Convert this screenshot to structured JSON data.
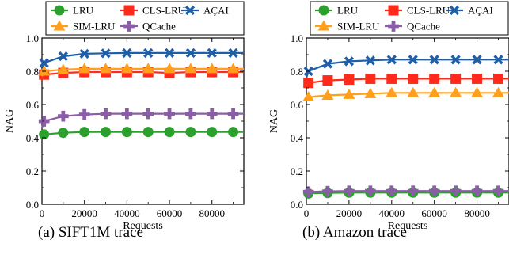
{
  "figure": {
    "captions": [
      "(a) SIFT1M trace",
      "(b) Amazon trace"
    ]
  },
  "chart_data": [
    {
      "type": "line",
      "title": "",
      "xlabel": "Requests",
      "ylabel": "NAG",
      "xlim": [
        0,
        95000
      ],
      "ylim": [
        0.0,
        1.0
      ],
      "xticks": [
        0,
        20000,
        40000,
        60000,
        80000
      ],
      "yticks": [
        0.0,
        0.2,
        0.4,
        0.6,
        0.8,
        1.0
      ],
      "grid": false,
      "legend": "top, outside frame, 3 columns",
      "x": [
        0,
        1000,
        10000,
        20000,
        30000,
        40000,
        50000,
        60000,
        70000,
        80000,
        90000,
        95000
      ],
      "series": [
        {
          "name": "LRU",
          "color": "#2ca02c",
          "marker": "circle",
          "values": [
            0.4,
            0.42,
            0.43,
            0.435,
            0.435,
            0.435,
            0.435,
            0.435,
            0.435,
            0.435,
            0.435,
            0.435
          ]
        },
        {
          "name": "CLS-LRU",
          "color": "#ff2a1a",
          "marker": "square",
          "values": [
            0.76,
            0.78,
            0.79,
            0.795,
            0.795,
            0.795,
            0.795,
            0.79,
            0.795,
            0.795,
            0.795,
            0.795
          ]
        },
        {
          "name": "AÇAI",
          "color": "#1f5fa8",
          "marker": "x",
          "values": [
            0.78,
            0.85,
            0.89,
            0.905,
            0.908,
            0.91,
            0.91,
            0.91,
            0.91,
            0.91,
            0.91,
            0.91
          ]
        },
        {
          "name": "SIM-LRU",
          "color": "#ff9f1a",
          "marker": "triangle",
          "values": [
            0.77,
            0.8,
            0.81,
            0.815,
            0.815,
            0.815,
            0.815,
            0.815,
            0.815,
            0.815,
            0.815,
            0.815
          ]
        },
        {
          "name": "QCache",
          "color": "#8b5ca8",
          "marker": "plus",
          "values": [
            0.46,
            0.5,
            0.53,
            0.54,
            0.545,
            0.545,
            0.545,
            0.545,
            0.545,
            0.545,
            0.545,
            0.545
          ]
        }
      ]
    },
    {
      "type": "line",
      "title": "",
      "xlabel": "Requests",
      "ylabel": "NAG",
      "xlim": [
        0,
        95000
      ],
      "ylim": [
        0.0,
        1.0
      ],
      "xticks": [
        0,
        20000,
        40000,
        60000,
        80000
      ],
      "yticks": [
        0.0,
        0.2,
        0.4,
        0.6,
        0.8,
        1.0
      ],
      "grid": false,
      "legend": "top, outside frame, 3 columns",
      "x": [
        0,
        1000,
        10000,
        20000,
        30000,
        40000,
        50000,
        60000,
        70000,
        80000,
        90000,
        95000
      ],
      "series": [
        {
          "name": "LRU",
          "color": "#2ca02c",
          "marker": "circle",
          "values": [
            0.06,
            0.065,
            0.068,
            0.07,
            0.07,
            0.07,
            0.07,
            0.07,
            0.07,
            0.07,
            0.07,
            0.07
          ]
        },
        {
          "name": "CLS-LRU",
          "color": "#ff2a1a",
          "marker": "square",
          "values": [
            0.7,
            0.73,
            0.745,
            0.75,
            0.755,
            0.755,
            0.755,
            0.755,
            0.755,
            0.755,
            0.755,
            0.755
          ]
        },
        {
          "name": "AÇAI",
          "color": "#1f5fa8",
          "marker": "x",
          "values": [
            0.76,
            0.8,
            0.845,
            0.86,
            0.865,
            0.87,
            0.87,
            0.87,
            0.87,
            0.87,
            0.87,
            0.87
          ]
        },
        {
          "name": "SIM-LRU",
          "color": "#ff9f1a",
          "marker": "triangle",
          "values": [
            0.62,
            0.645,
            0.655,
            0.66,
            0.665,
            0.67,
            0.67,
            0.67,
            0.67,
            0.67,
            0.67,
            0.67
          ]
        },
        {
          "name": "QCache",
          "color": "#8b5ca8",
          "marker": "plus",
          "values": [
            0.07,
            0.075,
            0.078,
            0.08,
            0.08,
            0.08,
            0.08,
            0.08,
            0.08,
            0.08,
            0.08,
            0.08
          ]
        }
      ]
    }
  ]
}
